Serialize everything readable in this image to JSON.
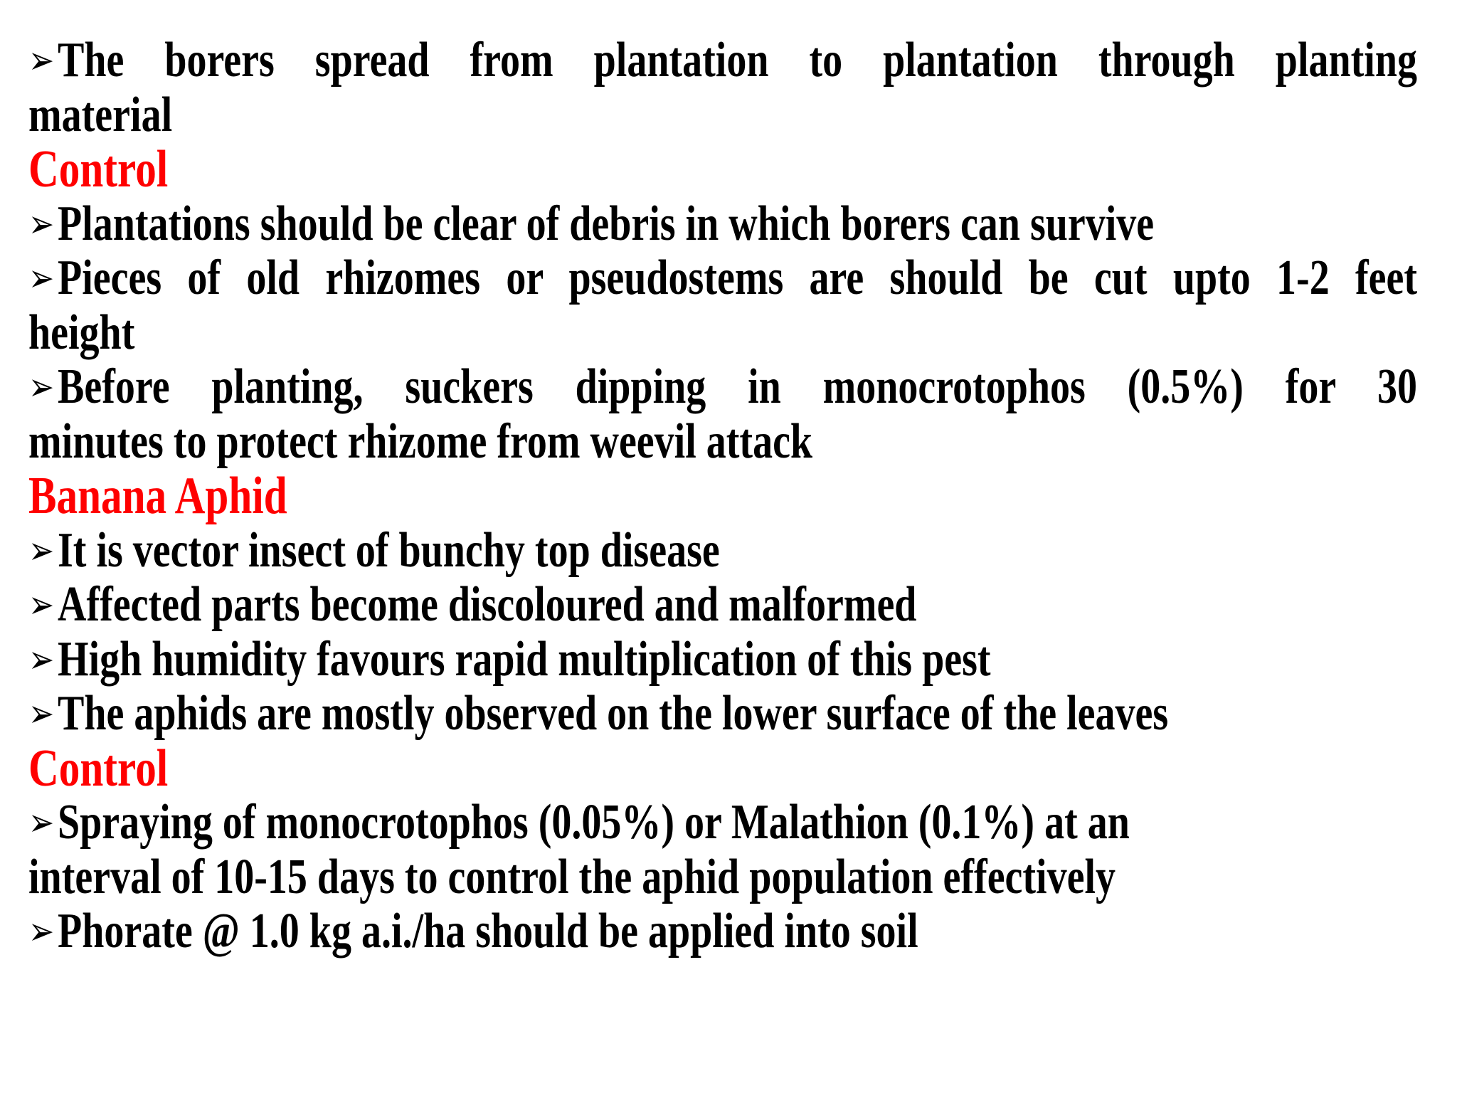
{
  "colors": {
    "text": "#000000",
    "heading": "#ff0000"
  },
  "bullet_icon": "arrow-bullet",
  "blocks": [
    {
      "type": "bullet",
      "lines": [
        "The borers spread from plantation to plantation through planting",
        "material"
      ]
    },
    {
      "type": "heading",
      "text": "Control"
    },
    {
      "type": "bullet",
      "lines": [
        "Plantations should be clear of debris in which borers can survive"
      ]
    },
    {
      "type": "bullet",
      "lines": [
        "Pieces of old rhizomes or pseudostems are should be cut upto 1-2 feet",
        "height"
      ]
    },
    {
      "type": "bullet",
      "lines": [
        "Before planting, suckers dipping in monocrotophos (0.5%) for 30",
        "minutes to protect rhizome from weevil attack"
      ]
    },
    {
      "type": "heading",
      "text": "Banana Aphid"
    },
    {
      "type": "bullet",
      "lines": [
        "It is vector insect of bunchy top disease"
      ]
    },
    {
      "type": "bullet",
      "lines": [
        "Affected parts become discoloured and malformed"
      ]
    },
    {
      "type": "bullet",
      "lines": [
        "High humidity favours rapid multiplication of this pest"
      ]
    },
    {
      "type": "bullet",
      "lines": [
        "The aphids are mostly observed on the lower surface of the leaves"
      ]
    },
    {
      "type": "heading",
      "text": "Control"
    },
    {
      "type": "bullet",
      "lines": [
        "Spraying of monocrotophos (0.05%) or Malathion (0.1%) at an",
        "interval of 10-15 days to control the aphid population effectively"
      ]
    },
    {
      "type": "bullet",
      "lines": [
        "Phorate @ 1.0 kg a.i./ha should be applied into soil"
      ]
    }
  ]
}
